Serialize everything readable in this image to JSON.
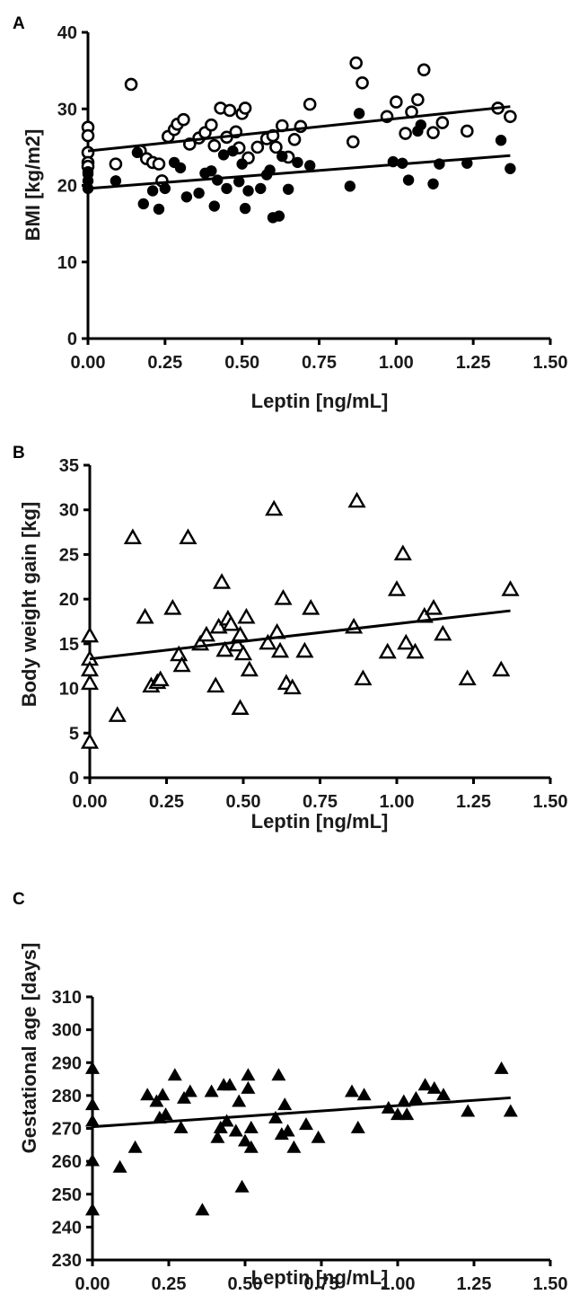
{
  "panels": [
    {
      "letter": "A"
    },
    {
      "letter": "B"
    },
    {
      "letter": "C"
    }
  ],
  "chart_data": [
    {
      "type": "scatter",
      "panel": "A",
      "xlabel": "Leptin [ng/mL]",
      "ylabel": "BMI [kg/m2]",
      "xlim": [
        0,
        1.5
      ],
      "ylim": [
        0,
        40
      ],
      "xticks": [
        "0.00",
        "0.25",
        "0.50",
        "0.75",
        "1.00",
        "1.25",
        "1.50"
      ],
      "yticks": [
        "0",
        "10",
        "20",
        "30",
        "40"
      ],
      "series": [
        {
          "marker": "open-circle",
          "points": [
            [
              0.0,
              27.6
            ],
            [
              0.0,
              26.5
            ],
            [
              0.0,
              24.3
            ],
            [
              0.0,
              23.0
            ],
            [
              0.0,
              22.5
            ],
            [
              0.09,
              22.8
            ],
            [
              0.14,
              33.2
            ],
            [
              0.17,
              24.5
            ],
            [
              0.19,
              23.5
            ],
            [
              0.21,
              23.0
            ],
            [
              0.23,
              22.8
            ],
            [
              0.24,
              20.6
            ],
            [
              0.26,
              26.4
            ],
            [
              0.28,
              27.3
            ],
            [
              0.29,
              28.0
            ],
            [
              0.31,
              28.6
            ],
            [
              0.33,
              25.4
            ],
            [
              0.36,
              26.2
            ],
            [
              0.38,
              26.9
            ],
            [
              0.4,
              27.9
            ],
            [
              0.41,
              25.2
            ],
            [
              0.43,
              30.1
            ],
            [
              0.45,
              26.3
            ],
            [
              0.46,
              29.8
            ],
            [
              0.48,
              27.0
            ],
            [
              0.49,
              24.9
            ],
            [
              0.5,
              29.4
            ],
            [
              0.51,
              30.1
            ],
            [
              0.52,
              23.6
            ],
            [
              0.55,
              25.0
            ],
            [
              0.58,
              26.1
            ],
            [
              0.6,
              26.5
            ],
            [
              0.61,
              25.0
            ],
            [
              0.63,
              27.8
            ],
            [
              0.65,
              23.7
            ],
            [
              0.67,
              26.0
            ],
            [
              0.69,
              27.7
            ],
            [
              0.72,
              30.6
            ],
            [
              0.86,
              25.7
            ],
            [
              0.87,
              36.0
            ],
            [
              0.89,
              33.4
            ],
            [
              0.97,
              29.0
            ],
            [
              1.0,
              30.9
            ],
            [
              1.03,
              26.8
            ],
            [
              1.05,
              29.6
            ],
            [
              1.07,
              31.2
            ],
            [
              1.09,
              35.1
            ],
            [
              1.12,
              26.9
            ],
            [
              1.15,
              28.2
            ],
            [
              1.23,
              27.1
            ],
            [
              1.33,
              30.1
            ],
            [
              1.37,
              29.0
            ]
          ]
        },
        {
          "marker": "filled-circle",
          "points": [
            [
              0.0,
              21.5
            ],
            [
              0.0,
              20.6
            ],
            [
              0.0,
              19.6
            ],
            [
              0.0,
              21.8
            ],
            [
              0.09,
              20.6
            ],
            [
              0.16,
              24.3
            ],
            [
              0.18,
              17.6
            ],
            [
              0.21,
              19.3
            ],
            [
              0.23,
              16.9
            ],
            [
              0.25,
              19.6
            ],
            [
              0.28,
              23.0
            ],
            [
              0.3,
              22.3
            ],
            [
              0.32,
              18.5
            ],
            [
              0.36,
              19.0
            ],
            [
              0.38,
              21.6
            ],
            [
              0.4,
              21.9
            ],
            [
              0.41,
              17.3
            ],
            [
              0.42,
              20.7
            ],
            [
              0.44,
              24.0
            ],
            [
              0.45,
              19.6
            ],
            [
              0.47,
              24.5
            ],
            [
              0.49,
              20.5
            ],
            [
              0.5,
              22.8
            ],
            [
              0.51,
              17.0
            ],
            [
              0.52,
              19.3
            ],
            [
              0.56,
              19.6
            ],
            [
              0.58,
              21.4
            ],
            [
              0.59,
              22.0
            ],
            [
              0.6,
              15.8
            ],
            [
              0.62,
              16.0
            ],
            [
              0.63,
              23.8
            ],
            [
              0.65,
              19.5
            ],
            [
              0.68,
              23.0
            ],
            [
              0.72,
              22.6
            ],
            [
              0.85,
              19.9
            ],
            [
              0.88,
              29.4
            ],
            [
              0.99,
              23.1
            ],
            [
              1.02,
              22.9
            ],
            [
              1.04,
              20.7
            ],
            [
              1.07,
              27.1
            ],
            [
              1.08,
              27.9
            ],
            [
              1.12,
              20.2
            ],
            [
              1.14,
              22.8
            ],
            [
              1.23,
              22.9
            ],
            [
              1.34,
              25.9
            ],
            [
              1.37,
              22.2
            ]
          ]
        }
      ],
      "fits": [
        [
          0,
          24.5,
          1.37,
          30.3
        ],
        [
          0,
          19.6,
          1.37,
          23.9
        ]
      ]
    },
    {
      "type": "scatter",
      "panel": "B",
      "xlabel": "Leptin [ng/mL]",
      "ylabel": "Body weight gain [kg]",
      "xlim": [
        0,
        1.5
      ],
      "ylim": [
        0,
        35
      ],
      "xticks": [
        "0.00",
        "0.25",
        "0.50",
        "0.75",
        "1.00",
        "1.25",
        "1.50"
      ],
      "yticks": [
        "0",
        "5",
        "10",
        "15",
        "20",
        "25",
        "30",
        "35"
      ],
      "series": [
        {
          "marker": "open-triangle",
          "points": [
            [
              0.0,
              15.8
            ],
            [
              0.0,
              13.2
            ],
            [
              0.0,
              12.0
            ],
            [
              0.0,
              10.5
            ],
            [
              0.0,
              3.9
            ],
            [
              0.09,
              6.9
            ],
            [
              0.14,
              26.8
            ],
            [
              0.18,
              17.9
            ],
            [
              0.2,
              10.2
            ],
            [
              0.22,
              10.6
            ],
            [
              0.23,
              10.9
            ],
            [
              0.27,
              18.9
            ],
            [
              0.29,
              13.7
            ],
            [
              0.3,
              12.5
            ],
            [
              0.32,
              26.8
            ],
            [
              0.36,
              14.9
            ],
            [
              0.38,
              15.9
            ],
            [
              0.41,
              10.2
            ],
            [
              0.42,
              16.8
            ],
            [
              0.43,
              21.8
            ],
            [
              0.44,
              14.2
            ],
            [
              0.45,
              17.7
            ],
            [
              0.46,
              17.1
            ],
            [
              0.48,
              14.8
            ],
            [
              0.49,
              7.7
            ],
            [
              0.49,
              15.9
            ],
            [
              0.5,
              13.8
            ],
            [
              0.51,
              17.9
            ],
            [
              0.52,
              12.0
            ],
            [
              0.58,
              15.0
            ],
            [
              0.6,
              30.0
            ],
            [
              0.61,
              16.2
            ],
            [
              0.62,
              14.1
            ],
            [
              0.63,
              20.0
            ],
            [
              0.64,
              10.5
            ],
            [
              0.66,
              10.0
            ],
            [
              0.7,
              14.1
            ],
            [
              0.72,
              18.9
            ],
            [
              0.86,
              16.8
            ],
            [
              0.87,
              30.9
            ],
            [
              0.89,
              11.0
            ],
            [
              0.97,
              14.0
            ],
            [
              1.0,
              21.0
            ],
            [
              1.02,
              25.0
            ],
            [
              1.03,
              15.0
            ],
            [
              1.06,
              14.0
            ],
            [
              1.09,
              18.0
            ],
            [
              1.12,
              18.9
            ],
            [
              1.15,
              16.0
            ],
            [
              1.23,
              11.0
            ],
            [
              1.34,
              12.0
            ],
            [
              1.37,
              21.0
            ]
          ]
        }
      ],
      "fits": [
        [
          0,
          13.3,
          1.37,
          18.7
        ]
      ]
    },
    {
      "type": "scatter",
      "panel": "C",
      "xlabel": "Leptin [ng/mL]",
      "ylabel": "Gestational age [days]",
      "xlim": [
        0,
        1.5
      ],
      "ylim": [
        230,
        310
      ],
      "xticks": [
        "0.00",
        "0.25",
        "0.50",
        "0.75",
        "1.00",
        "1.25",
        "1.50"
      ],
      "yticks": [
        "230",
        "240",
        "250",
        "260",
        "270",
        "280",
        "290",
        "300",
        "310"
      ],
      "series": [
        {
          "marker": "filled-triangle",
          "points": [
            [
              0.0,
              288
            ],
            [
              0.0,
              277
            ],
            [
              0.0,
              272
            ],
            [
              0.0,
              260
            ],
            [
              0.0,
              245
            ],
            [
              0.09,
              258
            ],
            [
              0.14,
              264
            ],
            [
              0.18,
              280
            ],
            [
              0.21,
              278
            ],
            [
              0.22,
              273
            ],
            [
              0.23,
              280
            ],
            [
              0.24,
              274
            ],
            [
              0.27,
              286
            ],
            [
              0.29,
              270
            ],
            [
              0.3,
              279
            ],
            [
              0.32,
              281
            ],
            [
              0.36,
              245
            ],
            [
              0.39,
              281
            ],
            [
              0.41,
              267
            ],
            [
              0.42,
              270
            ],
            [
              0.43,
              283
            ],
            [
              0.44,
              272
            ],
            [
              0.45,
              283
            ],
            [
              0.47,
              269
            ],
            [
              0.48,
              278
            ],
            [
              0.49,
              252
            ],
            [
              0.5,
              266
            ],
            [
              0.51,
              286
            ],
            [
              0.51,
              282
            ],
            [
              0.52,
              270
            ],
            [
              0.52,
              264
            ],
            [
              0.6,
              273
            ],
            [
              0.61,
              286
            ],
            [
              0.62,
              268
            ],
            [
              0.63,
              277
            ],
            [
              0.64,
              269
            ],
            [
              0.66,
              264
            ],
            [
              0.7,
              271
            ],
            [
              0.74,
              267
            ],
            [
              0.85,
              281
            ],
            [
              0.87,
              270
            ],
            [
              0.89,
              280
            ],
            [
              0.97,
              276
            ],
            [
              1.0,
              274
            ],
            [
              1.02,
              278
            ],
            [
              1.03,
              274
            ],
            [
              1.06,
              279
            ],
            [
              1.09,
              283
            ],
            [
              1.12,
              282
            ],
            [
              1.15,
              280
            ],
            [
              1.23,
              275
            ],
            [
              1.34,
              288
            ],
            [
              1.37,
              275
            ]
          ]
        }
      ],
      "fits": [
        [
          0,
          270.5,
          1.37,
          279.3
        ]
      ]
    }
  ]
}
